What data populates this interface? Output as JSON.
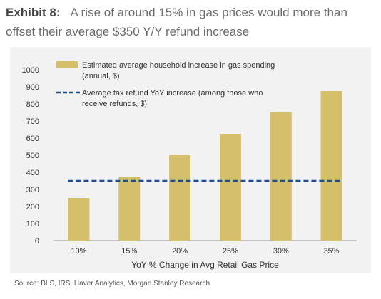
{
  "header": {
    "exhibit_label": "Exhibit 8:",
    "title_line1": "A rise of around 15% in gas prices would more than",
    "title_line2": "offset their average $350 Y/Y refund increase"
  },
  "source": "Source: BLS, IRS, Haver Analytics, Morgan Stanley Research",
  "chart_data": {
    "type": "bar",
    "categories": [
      "10%",
      "15%",
      "20%",
      "25%",
      "30%",
      "35%"
    ],
    "series": [
      {
        "name": "Estimated average household increase in gas spending (annual, $)",
        "type": "bar",
        "values": [
          250,
          375,
          500,
          625,
          750,
          875
        ],
        "color": "#d6bf6b"
      },
      {
        "name": "Average tax refund YoY increase (among those who receive refunds, $)",
        "type": "line",
        "style": "dashed",
        "values": [
          350,
          350,
          350,
          350,
          350,
          350
        ],
        "color": "#1f4e8c"
      }
    ],
    "legend": {
      "bar_lines": [
        "Estimated average household increase in gas spending",
        "(annual, $)"
      ],
      "line_lines": [
        "Average tax refund YoY increase (among those who",
        "receive refunds, $)"
      ],
      "placement": "top-left"
    },
    "xlabel": "YoY % Change in Avg Retail Gas Price",
    "ylabel": "",
    "ylim": [
      0,
      1000
    ],
    "yticks": [
      0,
      100,
      200,
      300,
      400,
      500,
      600,
      700,
      800,
      900,
      1000
    ],
    "grid": false
  }
}
